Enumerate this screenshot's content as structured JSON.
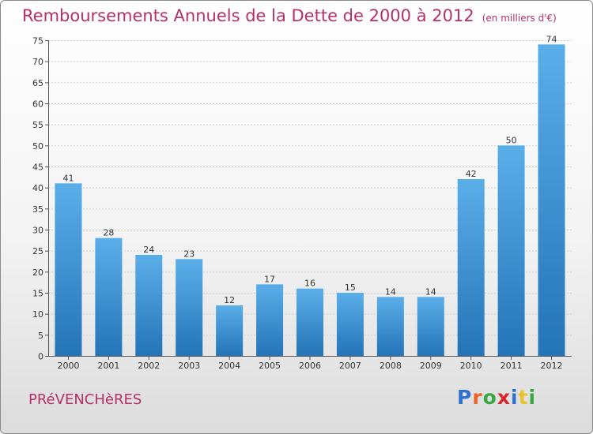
{
  "header": {
    "title": "Remboursements Annuels de la Dette de 2000 à 2012",
    "unit": "(en milliers d'€)"
  },
  "commune": "PRéVENCHèRES",
  "logo": {
    "text": "Proxiti",
    "colors": [
      "#2e6fd0",
      "#e8642c",
      "#3aa844",
      "#d8262c",
      "#2e6fd0",
      "#e8c22c",
      "#3aa844"
    ]
  },
  "chart_data": {
    "type": "bar",
    "title": "Remboursements Annuels de la Dette de 2000 à 2012",
    "categories": [
      "2000",
      "2001",
      "2002",
      "2003",
      "2004",
      "2005",
      "2006",
      "2007",
      "2008",
      "2009",
      "2010",
      "2011",
      "2012"
    ],
    "values": [
      41,
      28,
      24,
      23,
      12,
      17,
      16,
      15,
      14,
      14,
      42,
      50,
      74
    ],
    "ylim": [
      0,
      75
    ],
    "yticks": [
      0,
      5,
      10,
      15,
      20,
      25,
      30,
      35,
      40,
      45,
      50,
      55,
      60,
      65,
      70,
      75
    ],
    "grid": true,
    "bar_color_top": "#5aaee8",
    "bar_color_bottom": "#2474b8"
  }
}
